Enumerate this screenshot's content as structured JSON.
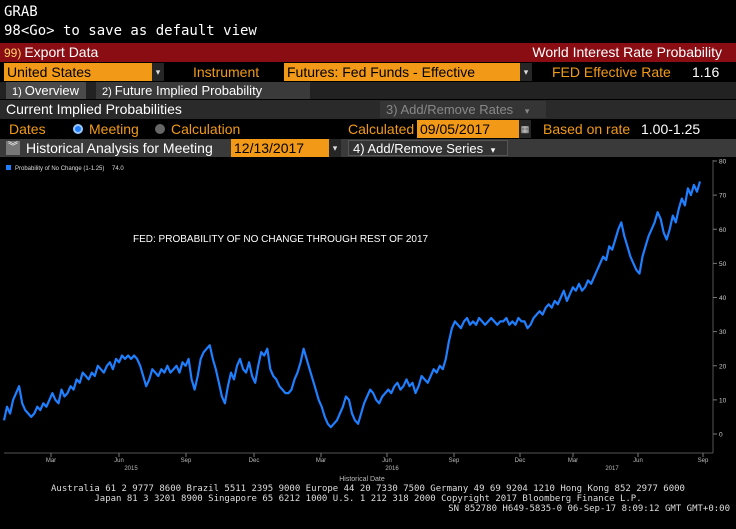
{
  "command": {
    "line1": "GRAB",
    "line2": "98<Go> to save as default view"
  },
  "titlebar": {
    "export_num": "99)",
    "export_label": "Export Data",
    "title": "World Interest Rate Probability"
  },
  "controls": {
    "country": "United States",
    "instrument_label": "Instrument",
    "instrument_value": "Futures: Fed Funds - Effective",
    "rate_label": "FED Effective Rate",
    "rate_value": "1.16"
  },
  "tabs": [
    {
      "num": "1)",
      "label": "Overview"
    },
    {
      "num": "2)",
      "label": "Future Implied Probability"
    }
  ],
  "section": {
    "title": "Current Implied Probabilities",
    "add_remove_rates": "3) Add/Remove Rates"
  },
  "dates": {
    "label": "Dates",
    "opt_meeting": "Meeting",
    "opt_calculation": "Calculation",
    "calculated_label": "Calculated",
    "calculated_value": "09/05/2017",
    "based_label": "Based on rate",
    "based_value": "1.00-1.25"
  },
  "history": {
    "title": "Historical Analysis for Meeting",
    "meeting_date": "12/13/2017",
    "add_remove_series": "4) Add/Remove Series"
  },
  "colors": {
    "series": "#1f7fff",
    "accent_orange": "#f29a18",
    "title_red": "#8b0d14"
  },
  "chart_data": {
    "type": "line",
    "annotation": "FED: PROBABILITY OF NO CHANGE THROUGH REST OF 2017",
    "xlabel": "Historical Date",
    "ylim": [
      -10,
      80
    ],
    "yticks": [
      0,
      10,
      20,
      30,
      40,
      50,
      60,
      70,
      80
    ],
    "grid": false,
    "legend": "top-left",
    "x_month_ticks": [
      "Mar",
      "Jun",
      "Sep",
      "Dec",
      "Mar",
      "Jun",
      "Sep",
      "Dec",
      "Mar",
      "Jun",
      "Sep"
    ],
    "x_year_ticks": [
      "2015",
      "2016",
      "2017"
    ],
    "series": [
      {
        "name": "Probability of No Change (1-1.25)",
        "last_value": "74.0",
        "values": [
          4,
          8,
          6,
          10,
          12,
          14,
          9,
          7,
          6,
          5,
          6,
          8,
          7,
          9,
          8,
          10,
          12,
          10,
          9,
          13,
          11,
          12,
          14,
          13,
          16,
          15,
          18,
          17,
          16,
          18,
          17,
          20,
          19,
          18,
          20,
          21,
          19,
          22,
          21,
          23,
          22,
          23,
          22,
          23,
          22,
          20,
          17,
          14,
          16,
          19,
          18,
          17,
          19,
          18,
          20,
          18,
          19,
          20,
          18,
          21,
          20,
          22,
          16,
          13,
          17,
          22,
          24,
          25,
          26,
          22,
          19,
          15,
          11,
          9,
          14,
          18,
          16,
          20,
          22,
          19,
          18,
          21,
          17,
          15,
          20,
          24,
          23,
          25,
          19,
          17,
          16,
          14,
          13,
          12,
          12,
          13,
          16,
          18,
          21,
          25,
          22,
          19,
          16,
          13,
          10,
          8,
          5,
          3,
          2,
          3,
          4,
          6,
          8,
          11,
          10,
          6,
          4,
          3,
          6,
          9,
          11,
          13,
          12,
          10,
          9,
          11,
          12,
          13,
          12,
          14,
          15,
          13,
          14,
          16,
          14,
          15,
          12,
          14,
          17,
          16,
          15,
          17,
          19,
          18,
          20,
          19,
          22,
          27,
          31,
          33,
          32,
          31,
          33,
          34,
          32,
          33,
          32,
          34,
          33,
          32,
          33,
          34,
          33,
          32,
          33,
          33,
          34,
          32,
          33,
          32,
          34,
          33,
          33,
          31,
          32,
          34,
          35,
          36,
          35,
          37,
          38,
          37,
          39,
          38,
          40,
          42,
          39,
          41,
          43,
          42,
          44,
          42,
          43,
          45,
          44,
          46,
          48,
          50,
          52,
          51,
          55,
          54,
          57,
          60,
          62,
          58,
          55,
          52,
          50,
          48,
          47,
          52,
          55,
          58,
          60,
          62,
          65,
          63,
          59,
          57,
          60,
          64,
          62,
          66,
          69,
          67,
          72,
          70,
          73,
          71,
          74
        ]
      }
    ]
  },
  "footer": {
    "line1": "Australia 61 2 9777 8600 Brazil 5511 2395 9000 Europe 44 20 7330 7500 Germany 49 69 9204 1210 Hong Kong 852 2977 6000",
    "line2": "Japan 81 3 3201 8900       Singapore 65 6212 1000       U.S. 1 212 318 2000            Copyright 2017 Bloomberg Finance L.P.",
    "line3": "SN 852780 H649-5835-0 06-Sep-17  8:09:12 GMT  GMT+0:00"
  }
}
